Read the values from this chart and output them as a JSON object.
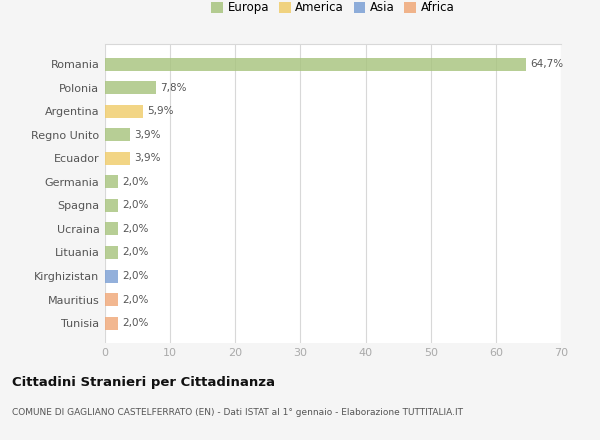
{
  "categories": [
    "Tunisia",
    "Mauritius",
    "Kirghizistan",
    "Lituania",
    "Ucraina",
    "Spagna",
    "Germania",
    "Ecuador",
    "Regno Unito",
    "Argentina",
    "Polonia",
    "Romania"
  ],
  "values": [
    2.0,
    2.0,
    2.0,
    2.0,
    2.0,
    2.0,
    2.0,
    3.9,
    3.9,
    5.9,
    7.8,
    64.7
  ],
  "labels": [
    "2,0%",
    "2,0%",
    "2,0%",
    "2,0%",
    "2,0%",
    "2,0%",
    "2,0%",
    "3,9%",
    "3,9%",
    "5,9%",
    "7,8%",
    "64,7%"
  ],
  "colors": [
    "#f0a878",
    "#f0a878",
    "#7b9fd4",
    "#a8c47e",
    "#a8c47e",
    "#a8c47e",
    "#a8c47e",
    "#f0cc6a",
    "#a8c47e",
    "#f0cc6a",
    "#a8c47e",
    "#a8c47e"
  ],
  "legend_labels": [
    "Europa",
    "America",
    "Asia",
    "Africa"
  ],
  "legend_colors": [
    "#a8c47e",
    "#f0cc6a",
    "#7b9fd4",
    "#f0a878"
  ],
  "title": "Cittadini Stranieri per Cittadinanza",
  "subtitle": "COMUNE DI GAGLIANO CASTELFERRATO (EN) - Dati ISTAT al 1° gennaio - Elaborazione TUTTITALIA.IT",
  "xlim": [
    0,
    70
  ],
  "xticks": [
    0,
    10,
    20,
    30,
    40,
    50,
    60,
    70
  ],
  "bg_color": "#f5f5f5",
  "bar_bg_color": "#ffffff",
  "grid_color": "#d8d8d8"
}
